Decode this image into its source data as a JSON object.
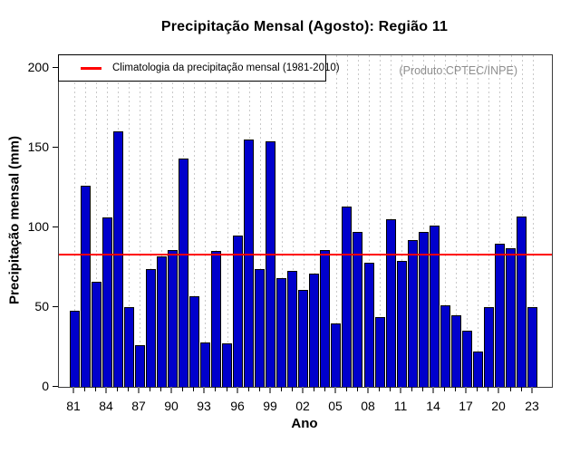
{
  "chart_data": {
    "type": "bar",
    "title": "Precipitação Mensal (Agosto): Região 11",
    "xlabel": "Ano",
    "ylabel": "Precipitação mensal (mm)",
    "annotation": "(Produto:CPTEC/INPE)",
    "legend_label": "Climatologia da precipitação mensal (1981-2010)",
    "legend_position": "top-left",
    "grid": "vertical-dotted",
    "ylim": [
      0,
      208
    ],
    "yticks": [
      0,
      50,
      100,
      150,
      200
    ],
    "x_label_every": 3,
    "categories": [
      "81",
      "82",
      "83",
      "84",
      "85",
      "86",
      "87",
      "88",
      "89",
      "90",
      "91",
      "92",
      "93",
      "94",
      "95",
      "96",
      "97",
      "98",
      "99",
      "00",
      "01",
      "02",
      "03",
      "04",
      "05",
      "06",
      "07",
      "08",
      "09",
      "10",
      "11",
      "12",
      "13",
      "14",
      "15",
      "16",
      "17",
      "18",
      "19",
      "20",
      "21",
      "22",
      "23"
    ],
    "values": [
      48,
      126,
      66,
      106,
      160,
      50,
      26,
      74,
      82,
      86,
      143,
      57,
      28,
      85,
      27,
      95,
      155,
      74,
      154,
      68,
      73,
      61,
      71,
      86,
      40,
      113,
      97,
      78,
      44,
      105,
      79,
      92,
      97,
      101,
      51,
      45,
      35,
      22,
      50,
      90,
      87,
      107,
      50
    ],
    "climatology_value": 83,
    "colors": {
      "bar_fill": "#0000CC",
      "bar_border": "#000000",
      "climatology_line": "#FF0000",
      "gridline": "#C9C9C9",
      "frame": "#3C3C3C",
      "annotation_text": "#8E8E8E"
    }
  }
}
